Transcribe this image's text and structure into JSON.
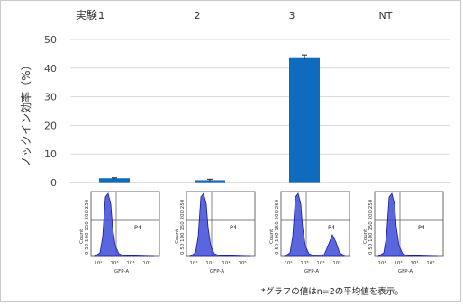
{
  "chart_data": {
    "type": "bar",
    "header_label": "実験：",
    "categories": [
      "1",
      "2",
      "3",
      "NT"
    ],
    "values": [
      1.5,
      0.8,
      43.8,
      0
    ],
    "errors": [
      0.15,
      0.35,
      0.8,
      0
    ],
    "ylabel": "ノックイン効率（%）",
    "xlabel": "",
    "ylim": [
      0,
      50
    ],
    "yticks": [
      "0",
      "10",
      "20",
      "30",
      "40",
      "50"
    ],
    "grid": true,
    "bar_color": "#0e6bbd",
    "grid_color": "#d9d9d9"
  },
  "flow_panels": {
    "count": 4,
    "y_axis_label": "Count",
    "y_ticks_text": "0 50 100 150 200 250",
    "x_axis_label": "GFP-A",
    "x_ticks": [
      "10²",
      "10³",
      "10⁴",
      "10⁵"
    ],
    "gate_label": "P4",
    "fill_color": "#3c4bd8",
    "line_color": "#1a1aa0",
    "second_peak": [
      false,
      false,
      true,
      false
    ]
  },
  "footnote": "*グラフの値はn=2の平均値を表示。"
}
